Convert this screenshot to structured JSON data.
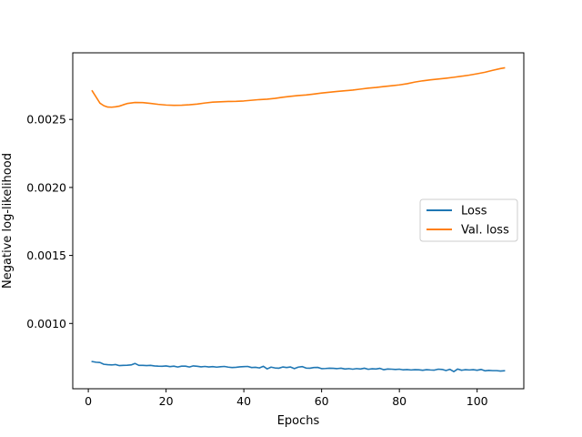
{
  "chart_data": {
    "type": "line",
    "xlabel": "Epochs",
    "ylabel": "Negative log-likelihood",
    "xlim": [
      -4,
      112
    ],
    "ylim": [
      0.00052,
      0.00299
    ],
    "xticks": [
      0,
      20,
      40,
      60,
      80,
      100
    ],
    "yticks": [
      0.001,
      0.0015,
      0.002,
      0.0025
    ],
    "ytick_labels": [
      "0.0010",
      "0.0015",
      "0.0020",
      "0.0025"
    ],
    "grid": false,
    "legend_position": "center-right",
    "series": [
      {
        "name": "Loss",
        "color": "#1f77b4",
        "x": [
          1,
          2,
          3,
          4,
          5,
          6,
          7,
          8,
          9,
          10,
          11,
          12,
          13,
          14,
          15,
          16,
          17,
          18,
          19,
          20,
          21,
          22,
          23,
          24,
          25,
          26,
          27,
          28,
          29,
          30,
          31,
          32,
          33,
          34,
          35,
          36,
          37,
          38,
          39,
          40,
          41,
          42,
          43,
          44,
          45,
          46,
          47,
          48,
          49,
          50,
          51,
          52,
          53,
          54,
          55,
          56,
          57,
          58,
          59,
          60,
          61,
          62,
          63,
          64,
          65,
          66,
          67,
          68,
          69,
          70,
          71,
          72,
          73,
          74,
          75,
          76,
          77,
          78,
          79,
          80,
          81,
          82,
          83,
          84,
          85,
          86,
          87,
          88,
          89,
          90,
          91,
          92,
          93,
          94,
          95,
          96,
          97,
          98,
          99,
          100,
          101,
          102,
          103,
          104,
          105,
          106,
          107
        ],
        "values": [
          0.00072,
          0.000715,
          0.000713,
          0.0007,
          0.000697,
          0.000695,
          0.000698,
          0.00069,
          0.000692,
          0.000693,
          0.000695,
          0.000706,
          0.000692,
          0.000692,
          0.00069,
          0.000692,
          0.000688,
          0.000686,
          0.000685,
          0.000688,
          0.000683,
          0.000686,
          0.00068,
          0.000686,
          0.000686,
          0.00068,
          0.000688,
          0.000685,
          0.000681,
          0.000684,
          0.00068,
          0.000683,
          0.000679,
          0.000682,
          0.000684,
          0.000679,
          0.000676,
          0.000678,
          0.000681,
          0.000683,
          0.000684,
          0.000676,
          0.000678,
          0.000673,
          0.000685,
          0.000666,
          0.000679,
          0.000673,
          0.000671,
          0.00068,
          0.000676,
          0.00068,
          0.000668,
          0.000679,
          0.000683,
          0.000672,
          0.000671,
          0.000676,
          0.000677,
          0.000668,
          0.000669,
          0.000671,
          0.00067,
          0.000668,
          0.000671,
          0.000665,
          0.000668,
          0.000664,
          0.000668,
          0.000665,
          0.000671,
          0.000663,
          0.000667,
          0.000665,
          0.00067,
          0.00066,
          0.000665,
          0.000664,
          0.000662,
          0.000664,
          0.000659,
          0.000661,
          0.000658,
          0.00066,
          0.000659,
          0.000656,
          0.00066,
          0.000658,
          0.000657,
          0.000664,
          0.000662,
          0.000654,
          0.000663,
          0.000646,
          0.000665,
          0.000656,
          0.00066,
          0.000658,
          0.00066,
          0.000656,
          0.000662,
          0.000652,
          0.000655,
          0.000653,
          0.000653,
          0.00065,
          0.000652
        ]
      },
      {
        "name": "Val. loss",
        "color": "#ff7f0e",
        "x": [
          1,
          2,
          3,
          4,
          5,
          6,
          7,
          8,
          9,
          10,
          12,
          14,
          16,
          18,
          20,
          22,
          24,
          26,
          28,
          30,
          32,
          34,
          36,
          38,
          40,
          42,
          44,
          46,
          48,
          50,
          52,
          54,
          56,
          58,
          60,
          62,
          64,
          66,
          68,
          70,
          72,
          74,
          76,
          78,
          80,
          82,
          84,
          86,
          88,
          90,
          92,
          94,
          96,
          98,
          100,
          102,
          104,
          106,
          107
        ],
        "values": [
          0.00271,
          0.002665,
          0.00262,
          0.002601,
          0.002591,
          0.00259,
          0.002593,
          0.002598,
          0.002608,
          0.002617,
          0.002625,
          0.002624,
          0.002618,
          0.002611,
          0.002606,
          0.002604,
          0.002605,
          0.002608,
          0.002613,
          0.002621,
          0.002627,
          0.00263,
          0.002632,
          0.002633,
          0.002636,
          0.002641,
          0.002646,
          0.002649,
          0.002655,
          0.002663,
          0.00267,
          0.002676,
          0.00268,
          0.002687,
          0.002694,
          0.0027,
          0.002706,
          0.002711,
          0.002716,
          0.002723,
          0.00273,
          0.002735,
          0.002742,
          0.002748,
          0.002754,
          0.002763,
          0.002775,
          0.002784,
          0.002791,
          0.002797,
          0.002803,
          0.00281,
          0.002818,
          0.002826,
          0.002836,
          0.002847,
          0.002861,
          0.002874,
          0.002879
        ]
      }
    ]
  }
}
